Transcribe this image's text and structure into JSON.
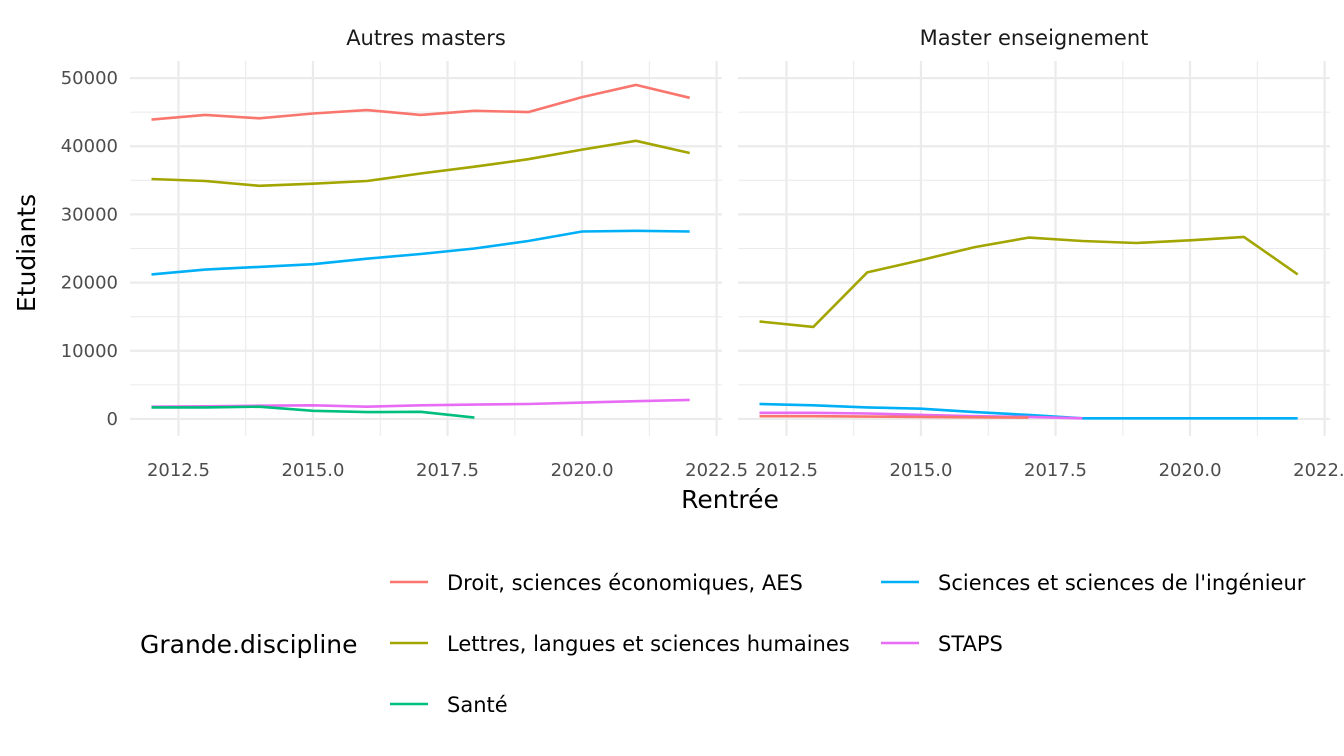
{
  "chart_data": {
    "type": "line",
    "xlabel": "Rentrée",
    "ylabel": "Etudiants",
    "xlim": [
      2011.6,
      2022.6
    ],
    "ylim": [
      -2500,
      52500
    ],
    "x_ticks": [
      "2012.5",
      "2015.0",
      "2017.5",
      "2020.0",
      "2022.5"
    ],
    "y_ticks": [
      "0",
      "10000",
      "20000",
      "30000",
      "40000",
      "50000"
    ],
    "x_tick_values": [
      2012.5,
      2015.0,
      2017.5,
      2020.0,
      2022.5
    ],
    "y_tick_values": [
      0,
      10000,
      20000,
      30000,
      40000,
      50000
    ],
    "grid": true,
    "legend": {
      "title": "Grande.discipline",
      "placement": "bottom",
      "entries": [
        {
          "label": "Droit, sciences économiques, AES",
          "color": "#F8766D"
        },
        {
          "label": "Sciences et sciences de l'ingénieur",
          "color": "#00B0F6"
        },
        {
          "label": "Lettres, langues et sciences humaines",
          "color": "#A3A500"
        },
        {
          "label": "STAPS",
          "color": "#E76BF3"
        },
        {
          "label": "Santé",
          "color": "#00BF7D"
        }
      ]
    },
    "panels": [
      {
        "title": "Autres masters",
        "series": [
          {
            "name": "Droit, sciences économiques, AES",
            "color": "#F8766D",
            "x": [
              2012,
              2013,
              2014,
              2015,
              2016,
              2017,
              2018,
              2019,
              2020,
              2021,
              2022
            ],
            "y": [
              43900,
              44600,
              44100,
              44800,
              45300,
              44600,
              45200,
              45000,
              47200,
              49000,
              47100
            ]
          },
          {
            "name": "Lettres, langues et sciences humaines",
            "color": "#A3A500",
            "x": [
              2012,
              2013,
              2014,
              2015,
              2016,
              2017,
              2018,
              2019,
              2020,
              2021,
              2022
            ],
            "y": [
              35200,
              34900,
              34200,
              34500,
              34900,
              36000,
              37000,
              38100,
              39500,
              40800,
              39000
            ]
          },
          {
            "name": "Sciences et sciences de l'ingénieur",
            "color": "#00B0F6",
            "x": [
              2012,
              2013,
              2014,
              2015,
              2016,
              2017,
              2018,
              2019,
              2020,
              2021,
              2022
            ],
            "y": [
              21200,
              21900,
              22300,
              22700,
              23500,
              24200,
              25000,
              26100,
              27500,
              27600,
              27500
            ]
          },
          {
            "name": "STAPS",
            "color": "#E76BF3",
            "x": [
              2012,
              2013,
              2014,
              2015,
              2016,
              2017,
              2018,
              2019,
              2020,
              2021,
              2022
            ],
            "y": [
              1800,
              1850,
              1950,
              2000,
              1800,
              2000,
              2100,
              2200,
              2400,
              2600,
              2800
            ]
          },
          {
            "name": "Santé",
            "color": "#00BF7D",
            "x": [
              2012,
              2013,
              2014,
              2015,
              2016,
              2017,
              2018
            ],
            "y": [
              1700,
              1700,
              1800,
              1200,
              1000,
              1050,
              200
            ]
          }
        ]
      },
      {
        "title": "Master enseignement",
        "series": [
          {
            "name": "Lettres, langues et sciences humaines",
            "color": "#A3A500",
            "x": [
              2012,
              2013,
              2014,
              2015,
              2016,
              2017,
              2018,
              2019,
              2020,
              2021,
              2022
            ],
            "y": [
              14300,
              13500,
              21500,
              23300,
              25200,
              26600,
              26100,
              25800,
              26200,
              26700,
              21200
            ]
          },
          {
            "name": "Sciences et sciences de l'ingénieur",
            "color": "#00B0F6",
            "x": [
              2012,
              2013,
              2014,
              2015,
              2016,
              2017,
              2018,
              2019,
              2020,
              2021,
              2022
            ],
            "y": [
              2200,
              2000,
              1700,
              1500,
              1000,
              600,
              100,
              100,
              100,
              100,
              100
            ]
          },
          {
            "name": "STAPS",
            "color": "#E76BF3",
            "x": [
              2012,
              2013,
              2014,
              2015,
              2016,
              2017,
              2018
            ],
            "y": [
              900,
              900,
              800,
              600,
              400,
              300,
              100
            ]
          },
          {
            "name": "Droit, sciences économiques, AES",
            "color": "#F8766D",
            "x": [
              2012,
              2013,
              2014,
              2015,
              2016,
              2017
            ],
            "y": [
              400,
              400,
              350,
              300,
              250,
              200
            ]
          }
        ]
      }
    ]
  }
}
